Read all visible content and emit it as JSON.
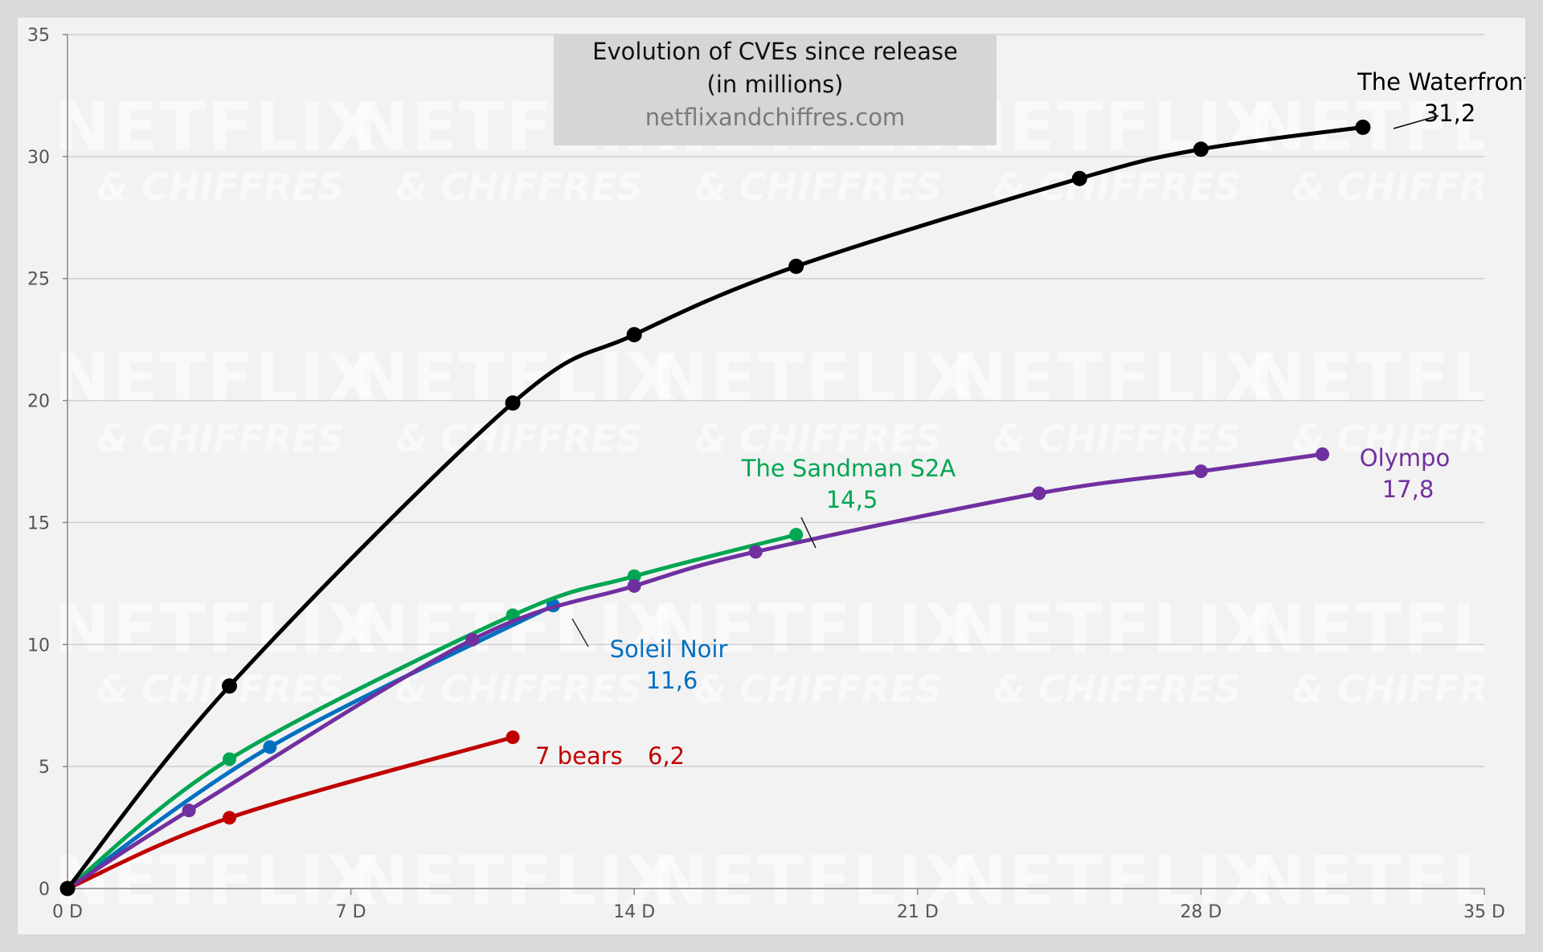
{
  "chart_data": {
    "type": "line",
    "title": "Evolution of CVEs since release",
    "subtitle": "(in millions)",
    "source": "netflixandchiffres.com",
    "watermark": [
      "NETFLIX",
      "& CHIFFRES"
    ],
    "xlabel": "",
    "ylabel": "",
    "xlim": [
      0,
      35
    ],
    "ylim": [
      0,
      35
    ],
    "x_ticks": [
      0,
      7,
      14,
      21,
      28,
      35
    ],
    "x_tick_labels": [
      "0 D",
      "7 D",
      "14 D",
      "21 D",
      "28 D",
      "35 D"
    ],
    "y_ticks": [
      0,
      5,
      10,
      15,
      20,
      25,
      30,
      35
    ],
    "y_tick_labels": [
      "0",
      "5",
      "10",
      "15",
      "20",
      "25",
      "30",
      "35"
    ],
    "grid": "horizontal",
    "series": [
      {
        "name": "The Waterfront",
        "color": "#000000",
        "x": [
          0,
          4,
          11,
          14,
          18,
          25,
          28,
          32
        ],
        "y": [
          0,
          8.3,
          19.9,
          22.7,
          25.5,
          29.1,
          30.3,
          31.2
        ],
        "end_label": "31,2"
      },
      {
        "name": "Olympo",
        "color": "#7030a0",
        "x": [
          0,
          3,
          10,
          14,
          17,
          24,
          28,
          31
        ],
        "y": [
          0,
          3.2,
          10.2,
          12.4,
          13.8,
          16.2,
          17.1,
          17.8
        ],
        "end_label": "17,8"
      },
      {
        "name": "The Sandman S2A",
        "color": "#00a651",
        "x": [
          0,
          4,
          11,
          14,
          18
        ],
        "y": [
          0,
          5.3,
          11.2,
          12.8,
          14.5
        ],
        "end_label": "14,5"
      },
      {
        "name": "Soleil Noir",
        "color": "#0070c0",
        "x": [
          0,
          5,
          12
        ],
        "y": [
          0,
          5.8,
          11.6
        ],
        "end_label": "11,6"
      },
      {
        "name": "7 bears",
        "color": "#c00000",
        "x": [
          0,
          4,
          11
        ],
        "y": [
          0,
          2.9,
          6.2
        ],
        "end_label": "6,2"
      }
    ]
  }
}
